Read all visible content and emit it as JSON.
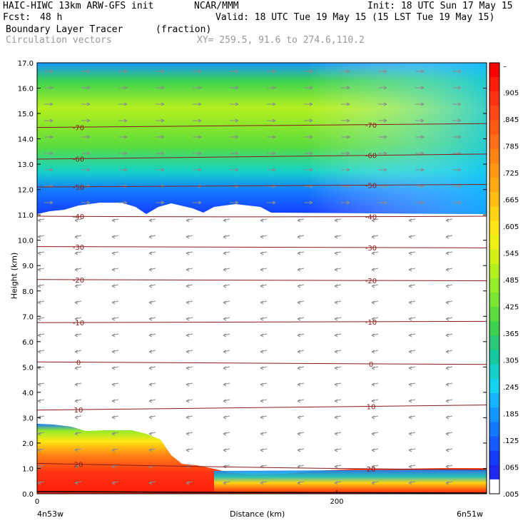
{
  "header": {
    "model": "HAIC-HIWC 13km ARW-GFS init",
    "center": "NCAR/MMM",
    "init": "Init: 18 UTC Sun 17 May 15",
    "fcst_label": "Fcst:",
    "fcst_value": "48 h",
    "valid": "Valid: 18 UTC Tue 19 May 15 (15 LST Tue 19 May 15)",
    "field": "Boundary Layer Tracer",
    "units": "(fraction)",
    "overlay": "Circulation vectors",
    "xy": "XY= 259.5, 91.6 to 274.6,110.2"
  },
  "axes": {
    "xlabel": "Distance (km)",
    "ylabel": "Height (km)",
    "left_location": "4n53w",
    "right_location": "6n51w"
  },
  "colors": {
    "red": "#ff2a14",
    "orange": "#ff8c1e",
    "yellow": "#ffe600",
    "lime": "#9be62d",
    "green": "#5ad23c",
    "cyan": "#14dcdc",
    "lightblue": "#1eaaff",
    "blue": "#145aff",
    "deepblue": "#0f1ee6",
    "contour": "#8b1a1a",
    "vector": "#8c8c8c"
  },
  "chart_data": {
    "type": "heatmap",
    "title": "Boundary Layer Tracer",
    "xlabel": "Distance (km)",
    "ylabel": "Height (km)",
    "xlim": [
      0,
      300
    ],
    "ylim": [
      0,
      17
    ],
    "x_ticks": [
      "0",
      "200"
    ],
    "y_ticks": [
      "0.0",
      "1.0",
      "2.0",
      "3.0",
      "4.0",
      "5.0",
      "6.0",
      "7.0",
      "8.0",
      "9.0",
      "10.0",
      "11.0",
      "12.0",
      "13.0",
      "14.0",
      "15.0",
      "16.0",
      "17.0"
    ],
    "colorbar": {
      "labels": [
        "–",
        ".905",
        ".845",
        ".785",
        ".725",
        ".665",
        ".605",
        ".545",
        ".485",
        ".425",
        ".365",
        ".305",
        ".245",
        ".185",
        ".125",
        ".065",
        ".005"
      ],
      "colors": [
        "#ff0000",
        "#ff1e0a",
        "#ff3214",
        "#ff4614",
        "#ff5a14",
        "#ff6e14",
        "#ff8214",
        "#ff9614",
        "#ffaa14",
        "#ffbe14",
        "#ffd214",
        "#ffe614",
        "#f0f014",
        "#d2f014",
        "#b4f01e",
        "#96eb28",
        "#78e632",
        "#5adc3c",
        "#3cd250",
        "#28c878",
        "#14c8a0",
        "#14d2c8",
        "#14d2f0",
        "#14b4ff",
        "#1496ff",
        "#1478ff",
        "#145aff",
        "#143cff",
        "#1e28f0",
        "#ffffff"
      ]
    },
    "temperature_contours_C": [
      {
        "label": "-70",
        "height_km": [
          14.45,
          14.5,
          14.6
        ]
      },
      {
        "label": "-60",
        "height_km": [
          13.2,
          13.3,
          13.4
        ]
      },
      {
        "label": "-50",
        "height_km": [
          12.1,
          12.15,
          12.2
        ]
      },
      {
        "label": "-40",
        "height_km": [
          10.95,
          10.9,
          10.95
        ]
      },
      {
        "label": "-30",
        "height_km": [
          9.75,
          9.7,
          9.7
        ]
      },
      {
        "label": "-20",
        "height_km": [
          8.45,
          8.45,
          8.4
        ]
      },
      {
        "label": "-10",
        "height_km": [
          6.75,
          6.75,
          6.8
        ]
      },
      {
        "label": "0",
        "height_km": [
          5.2,
          5.15,
          5.1
        ]
      },
      {
        "label": "10",
        "height_km": [
          3.3,
          3.4,
          3.5
        ]
      },
      {
        "label": "20",
        "height_km": [
          1.2,
          1.0,
          0.95
        ]
      }
    ]
  }
}
